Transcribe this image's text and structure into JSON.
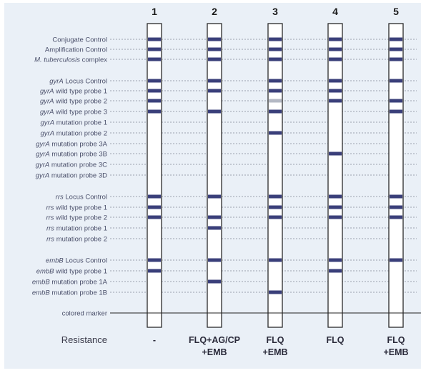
{
  "strip_numbers": [
    "1",
    "2",
    "3",
    "4",
    "5"
  ],
  "probes": [
    {
      "label": "Conjugate Control",
      "italic_prefix": ""
    },
    {
      "label": "Amplification Control",
      "italic_prefix": ""
    },
    {
      "label": "M. tuberculosis complex",
      "italic_prefix": "M. tuberculosis"
    },
    {
      "label": "gyrA Locus Control",
      "italic_prefix": "gyrA"
    },
    {
      "label": "gyrA wild type probe 1",
      "italic_prefix": "gyrA"
    },
    {
      "label": "gyrA wild type probe 2",
      "italic_prefix": "gyrA"
    },
    {
      "label": "gyrA wild type probe 3",
      "italic_prefix": "gyrA"
    },
    {
      "label": "gyrA mutation probe 1",
      "italic_prefix": "gyrA"
    },
    {
      "label": "gyrA mutation probe 2",
      "italic_prefix": "gyrA"
    },
    {
      "label": "gyrA mutation probe 3A",
      "italic_prefix": "gyrA"
    },
    {
      "label": "gyrA mutation probe 3B",
      "italic_prefix": "gyrA"
    },
    {
      "label": "gyrA mutation probe 3C",
      "italic_prefix": "gyrA"
    },
    {
      "label": "gyrA mutation probe 3D",
      "italic_prefix": "gyrA"
    },
    {
      "label": "rrs Locus Control",
      "italic_prefix": "rrs"
    },
    {
      "label": "rrs wild type probe 1",
      "italic_prefix": "rrs"
    },
    {
      "label": "rrs wild type probe 2",
      "italic_prefix": "rrs"
    },
    {
      "label": "rrs mutation probe 1",
      "italic_prefix": "rrs"
    },
    {
      "label": "rrs mutation probe 2",
      "italic_prefix": "rrs"
    },
    {
      "label": "embB Locus Control",
      "italic_prefix": "embB"
    },
    {
      "label": "embB wild type probe 1",
      "italic_prefix": "embB"
    },
    {
      "label": "embB mutation probe 1A",
      "italic_prefix": "embB"
    },
    {
      "label": "embB mutation probe 1B",
      "italic_prefix": "embB"
    }
  ],
  "marker_label": "colored marker",
  "strips": [
    {
      "bands": [
        0,
        1,
        2,
        3,
        4,
        5,
        6,
        13,
        14,
        15,
        18,
        19
      ],
      "faint": []
    },
    {
      "bands": [
        0,
        1,
        2,
        3,
        4,
        6,
        13,
        15,
        16,
        18,
        20
      ],
      "faint": []
    },
    {
      "bands": [
        0,
        1,
        2,
        3,
        4,
        6,
        8,
        13,
        14,
        15,
        18,
        21
      ],
      "faint": [
        5
      ]
    },
    {
      "bands": [
        0,
        1,
        2,
        3,
        4,
        5,
        10,
        13,
        14,
        15,
        18,
        19
      ],
      "faint": []
    },
    {
      "bands": [
        0,
        1,
        2,
        3,
        5,
        6,
        13,
        14,
        15,
        18
      ],
      "faint": []
    }
  ],
  "resistance_label": "Resistance",
  "resistance": [
    [
      "-"
    ],
    [
      "FLQ+AG/CP",
      "+EMB"
    ],
    [
      "FLQ",
      "+EMB"
    ],
    [
      "FLQ"
    ],
    [
      "FLQ",
      "+EMB"
    ]
  ],
  "colors": {
    "background": "#eaf0f7",
    "band": "#3a3f7a",
    "faint_band": "#b4b8c4",
    "strip_fill": "#ffffff",
    "strip_border": "#2a2a2a",
    "label_text": "#4a4f6a",
    "leader": "#9aa0ad"
  }
}
